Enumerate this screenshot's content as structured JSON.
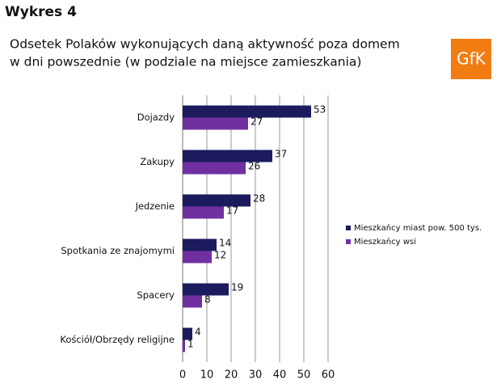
{
  "header": {
    "title": "Wykres 4",
    "logo": "GfK"
  },
  "chart_data": {
    "type": "bar",
    "orientation": "horizontal",
    "title": [
      "Odsetek Polaków wykonujących daną aktywność poza domem",
      "w dni powszednie (w podziale na miejsce zamieszkania)"
    ],
    "categories": [
      "Dojazdy",
      "Zakupy",
      "Jedzenie",
      "Spotkania ze znajomymi",
      "Spacery",
      "Kościół/Obrzędy religijne"
    ],
    "series": [
      {
        "name": "Mieszkańcy miast pow. 500 tys.",
        "color": "#1b1b5e",
        "values": [
          53,
          37,
          28,
          14,
          19,
          4
        ]
      },
      {
        "name": "Mieszkańcy wsi",
        "color": "#7030a0",
        "values": [
          27,
          26,
          17,
          12,
          8,
          1
        ]
      }
    ],
    "xlim": [
      0,
      60
    ],
    "xticks": [
      0,
      10,
      20,
      30,
      40,
      50,
      60
    ],
    "grid": true,
    "legend": "right"
  }
}
